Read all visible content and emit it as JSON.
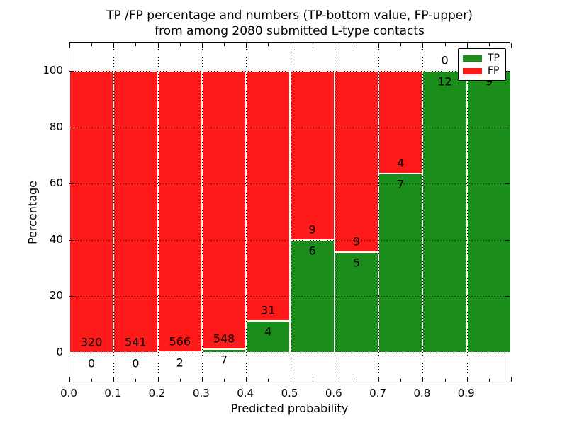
{
  "title": {
    "line1": "TP /FP percentage and numbers (TP-bottom value, FP-upper)",
    "line2": "from among 2080 submitted L-type contacts"
  },
  "axes": {
    "xlabel": "Predicted probability",
    "ylabel": "Percentage",
    "xtick_labels": [
      "0.0",
      "0.1",
      "0.2",
      "0.3",
      "0.4",
      "0.5",
      "0.6",
      "0.7",
      "0.8",
      "0.9"
    ],
    "xtick_values": [
      0.0,
      0.1,
      0.2,
      0.3,
      0.4,
      0.5,
      0.6,
      0.7,
      0.8,
      0.9
    ],
    "ytick_labels": [
      "0",
      "20",
      "40",
      "60",
      "80",
      "100"
    ],
    "ytick_values": [
      0,
      20,
      40,
      60,
      80,
      100
    ],
    "xlim": [
      0.0,
      1.0
    ],
    "ylim": [
      -11,
      110
    ],
    "grid": "dotted"
  },
  "legend": {
    "position": "upper-right",
    "items": [
      {
        "label": "TP",
        "color": "#1a8d1a"
      },
      {
        "label": "FP",
        "color": "#ff1a1a"
      }
    ]
  },
  "colors": {
    "tp": "#1a8d1a",
    "fp": "#ff1a1a",
    "background": "#ffffff",
    "text": "#000000"
  },
  "chart_data": {
    "type": "bar",
    "stacked": true,
    "unit": "percent",
    "total_contacts": 2080,
    "series_names": [
      "TP",
      "FP"
    ],
    "bins": [
      {
        "x0": 0.0,
        "x1": 0.1,
        "tp": 0,
        "fp": 320,
        "tp_pct": 0.0,
        "fp_label_visible": true
      },
      {
        "x0": 0.1,
        "x1": 0.2,
        "tp": 0,
        "fp": 541,
        "tp_pct": 0.0,
        "fp_label_visible": true
      },
      {
        "x0": 0.2,
        "x1": 0.3,
        "tp": 2,
        "fp": 566,
        "tp_pct": 0.35,
        "fp_label_visible": true
      },
      {
        "x0": 0.3,
        "x1": 0.4,
        "tp": 7,
        "fp": 548,
        "tp_pct": 1.26,
        "fp_label_visible": true
      },
      {
        "x0": 0.4,
        "x1": 0.5,
        "tp": 4,
        "fp": 31,
        "tp_pct": 11.43,
        "fp_label_visible": true
      },
      {
        "x0": 0.5,
        "x1": 0.6,
        "tp": 6,
        "fp": 9,
        "tp_pct": 40.0,
        "fp_label_visible": true
      },
      {
        "x0": 0.6,
        "x1": 0.7,
        "tp": 5,
        "fp": 9,
        "tp_pct": 35.71,
        "fp_label_visible": true
      },
      {
        "x0": 0.7,
        "x1": 0.8,
        "tp": 7,
        "fp": 4,
        "tp_pct": 63.64,
        "fp_label_visible": true
      },
      {
        "x0": 0.8,
        "x1": 0.9,
        "tp": 12,
        "fp": 0,
        "tp_pct": 100.0,
        "fp_label_visible": true
      },
      {
        "x0": 0.9,
        "x1": 1.0,
        "tp": 9,
        "fp": 0,
        "tp_pct": 100.0,
        "fp_label_visible": false
      }
    ]
  }
}
